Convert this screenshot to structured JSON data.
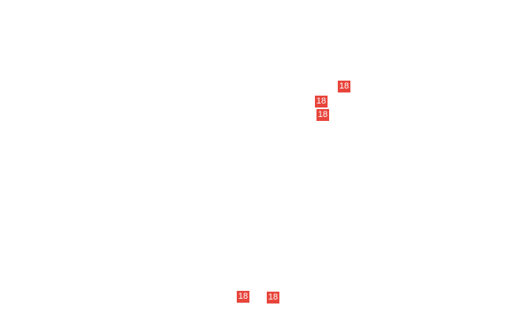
{
  "badge_color": "#e8453c",
  "badges": [
    {
      "label": "18"
    },
    {
      "label": "18"
    },
    {
      "label": "18"
    },
    {
      "label": "18"
    },
    {
      "label": "18"
    }
  ]
}
